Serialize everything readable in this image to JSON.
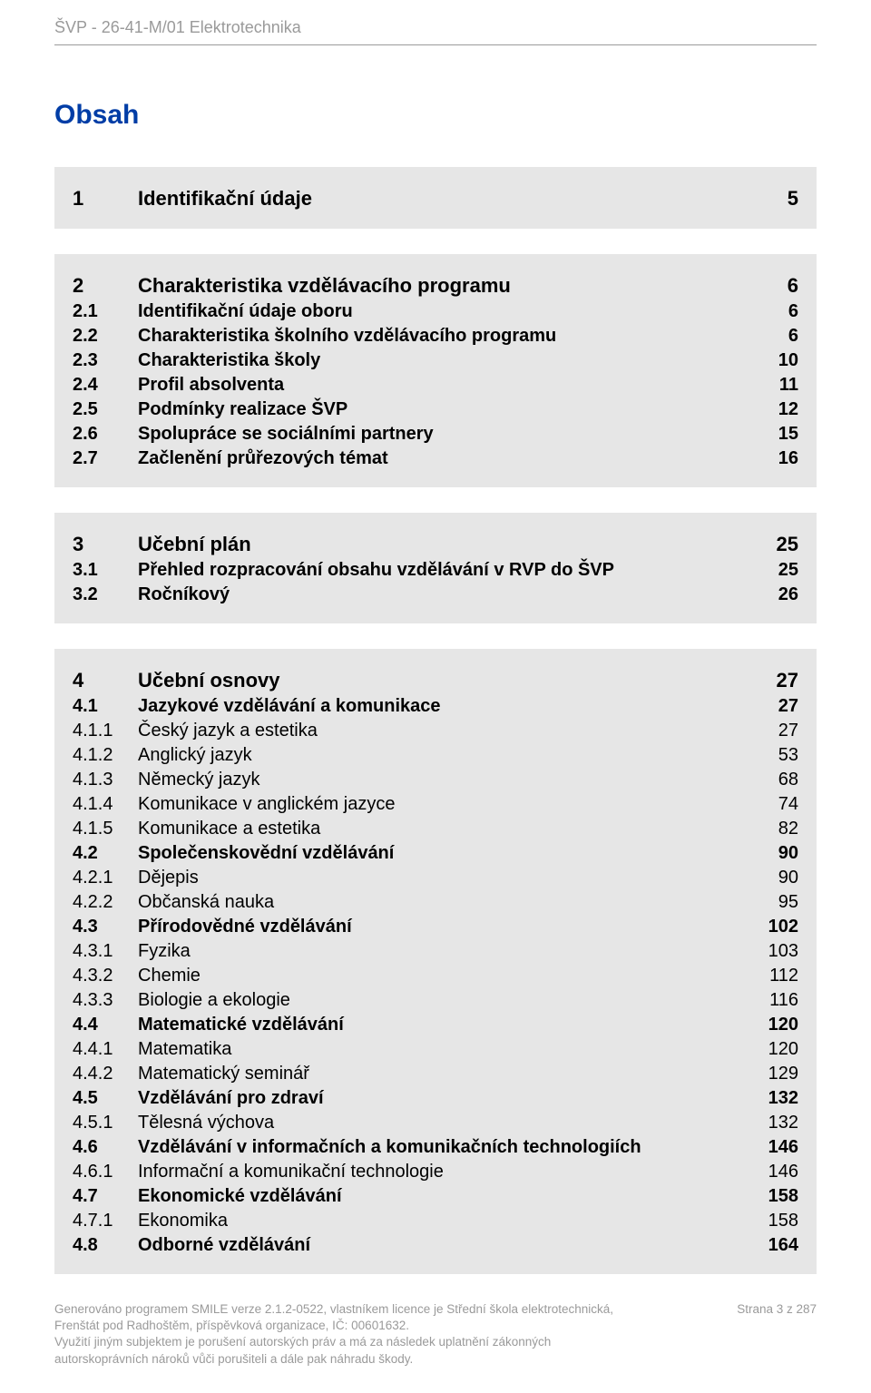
{
  "header": {
    "text": "ŠVP - 26-41-M/01 Elektrotechnika",
    "color": "#9a9a9a"
  },
  "title": {
    "text": "Obsah",
    "color": "#003da6"
  },
  "background_color": "#ffffff",
  "toc_background_color": "#e6e6e6",
  "text_color": "#000000",
  "muted_color": "#9a9a9a",
  "toc_groups": [
    {
      "rows": [
        {
          "level": "h1",
          "num": "1",
          "label": "Identifikační údaje",
          "page": "5"
        }
      ]
    },
    {
      "rows": [
        {
          "level": "h1",
          "num": "2",
          "label": "Charakteristika vzdělávacího programu",
          "page": "6"
        },
        {
          "level": "h2",
          "num": "2.1",
          "label": "Identifikační údaje oboru",
          "page": "6"
        },
        {
          "level": "h2",
          "num": "2.2",
          "label": "Charakteristika školního vzdělávacího programu",
          "page": "6"
        },
        {
          "level": "h2",
          "num": "2.3",
          "label": "Charakteristika školy",
          "page": "10"
        },
        {
          "level": "h2",
          "num": "2.4",
          "label": "Profil absolventa",
          "page": "11"
        },
        {
          "level": "h2",
          "num": "2.5",
          "label": "Podmínky realizace ŠVP",
          "page": "12"
        },
        {
          "level": "h2",
          "num": "2.6",
          "label": "Spolupráce se sociálními partnery",
          "page": "15"
        },
        {
          "level": "h2",
          "num": "2.7",
          "label": "Začlenění průřezových témat",
          "page": "16"
        }
      ]
    },
    {
      "rows": [
        {
          "level": "h1",
          "num": "3",
          "label": "Učební plán",
          "page": "25"
        },
        {
          "level": "h2",
          "num": "3.1",
          "label": "Přehled rozpracování obsahu vzdělávání v RVP do ŠVP",
          "page": "25"
        },
        {
          "level": "h2",
          "num": "3.2",
          "label": "Ročníkový",
          "page": "26"
        }
      ]
    },
    {
      "rows": [
        {
          "level": "h1",
          "num": "4",
          "label": "Učební osnovy",
          "page": "27"
        },
        {
          "level": "h2",
          "num": "4.1",
          "label": "Jazykové vzdělávání a komunikace",
          "page": "27"
        },
        {
          "level": "h3",
          "num": "4.1.1",
          "label": "Český jazyk a estetika",
          "page": "27"
        },
        {
          "level": "h3",
          "num": "4.1.2",
          "label": "Anglický jazyk",
          "page": "53"
        },
        {
          "level": "h3",
          "num": "4.1.3",
          "label": "Německý jazyk",
          "page": "68"
        },
        {
          "level": "h3",
          "num": "4.1.4",
          "label": "Komunikace v anglickém jazyce",
          "page": "74"
        },
        {
          "level": "h3",
          "num": "4.1.5",
          "label": "Komunikace a estetika",
          "page": "82"
        },
        {
          "level": "h2",
          "num": "4.2",
          "label": "Společenskovědní vzdělávání",
          "page": "90"
        },
        {
          "level": "h3",
          "num": "4.2.1",
          "label": "Dějepis",
          "page": "90"
        },
        {
          "level": "h3",
          "num": "4.2.2",
          "label": "Občanská nauka",
          "page": "95"
        },
        {
          "level": "h2",
          "num": "4.3",
          "label": "Přírodovědné vzdělávání",
          "page": "102"
        },
        {
          "level": "h3",
          "num": "4.3.1",
          "label": "Fyzika",
          "page": "103"
        },
        {
          "level": "h3",
          "num": "4.3.2",
          "label": "Chemie",
          "page": "112"
        },
        {
          "level": "h3",
          "num": "4.3.3",
          "label": "Biologie a ekologie",
          "page": "116"
        },
        {
          "level": "h2",
          "num": "4.4",
          "label": "Matematické vzdělávání",
          "page": "120"
        },
        {
          "level": "h3",
          "num": "4.4.1",
          "label": "Matematika",
          "page": "120"
        },
        {
          "level": "h3",
          "num": "4.4.2",
          "label": "Matematický seminář",
          "page": "129"
        },
        {
          "level": "h2",
          "num": "4.5",
          "label": "Vzdělávání pro zdraví",
          "page": "132"
        },
        {
          "level": "h3",
          "num": "4.5.1",
          "label": "Tělesná výchova",
          "page": "132"
        },
        {
          "level": "h2",
          "num": "4.6",
          "label": "Vzdělávání v informačních a komunikačních technologiích",
          "page": "146"
        },
        {
          "level": "h3",
          "num": "4.6.1",
          "label": "Informační a komunikační technologie",
          "page": "146"
        },
        {
          "level": "h2",
          "num": "4.7",
          "label": "Ekonomické vzdělávání",
          "page": "158"
        },
        {
          "level": "h3",
          "num": "4.7.1",
          "label": "Ekonomika",
          "page": "158"
        },
        {
          "level": "h2",
          "num": "4.8",
          "label": "Odborné vzdělávání",
          "page": "164"
        }
      ]
    }
  ],
  "footer": {
    "line1": "Generováno programem SMILE verze 2.1.2-0522, vlastníkem licence je Střední škola elektrotechnická,",
    "line2": "Frenštát pod Radhoštěm, příspěvková organizace, IČ: 00601632.",
    "line3": "Využití jiným subjektem je porušení autorských práv a má za následek uplatnění zákonných",
    "line4": "autorskoprávních nároků vůči porušiteli a dále pak náhradu škody.",
    "page_info": "Strana 3 z 287"
  }
}
